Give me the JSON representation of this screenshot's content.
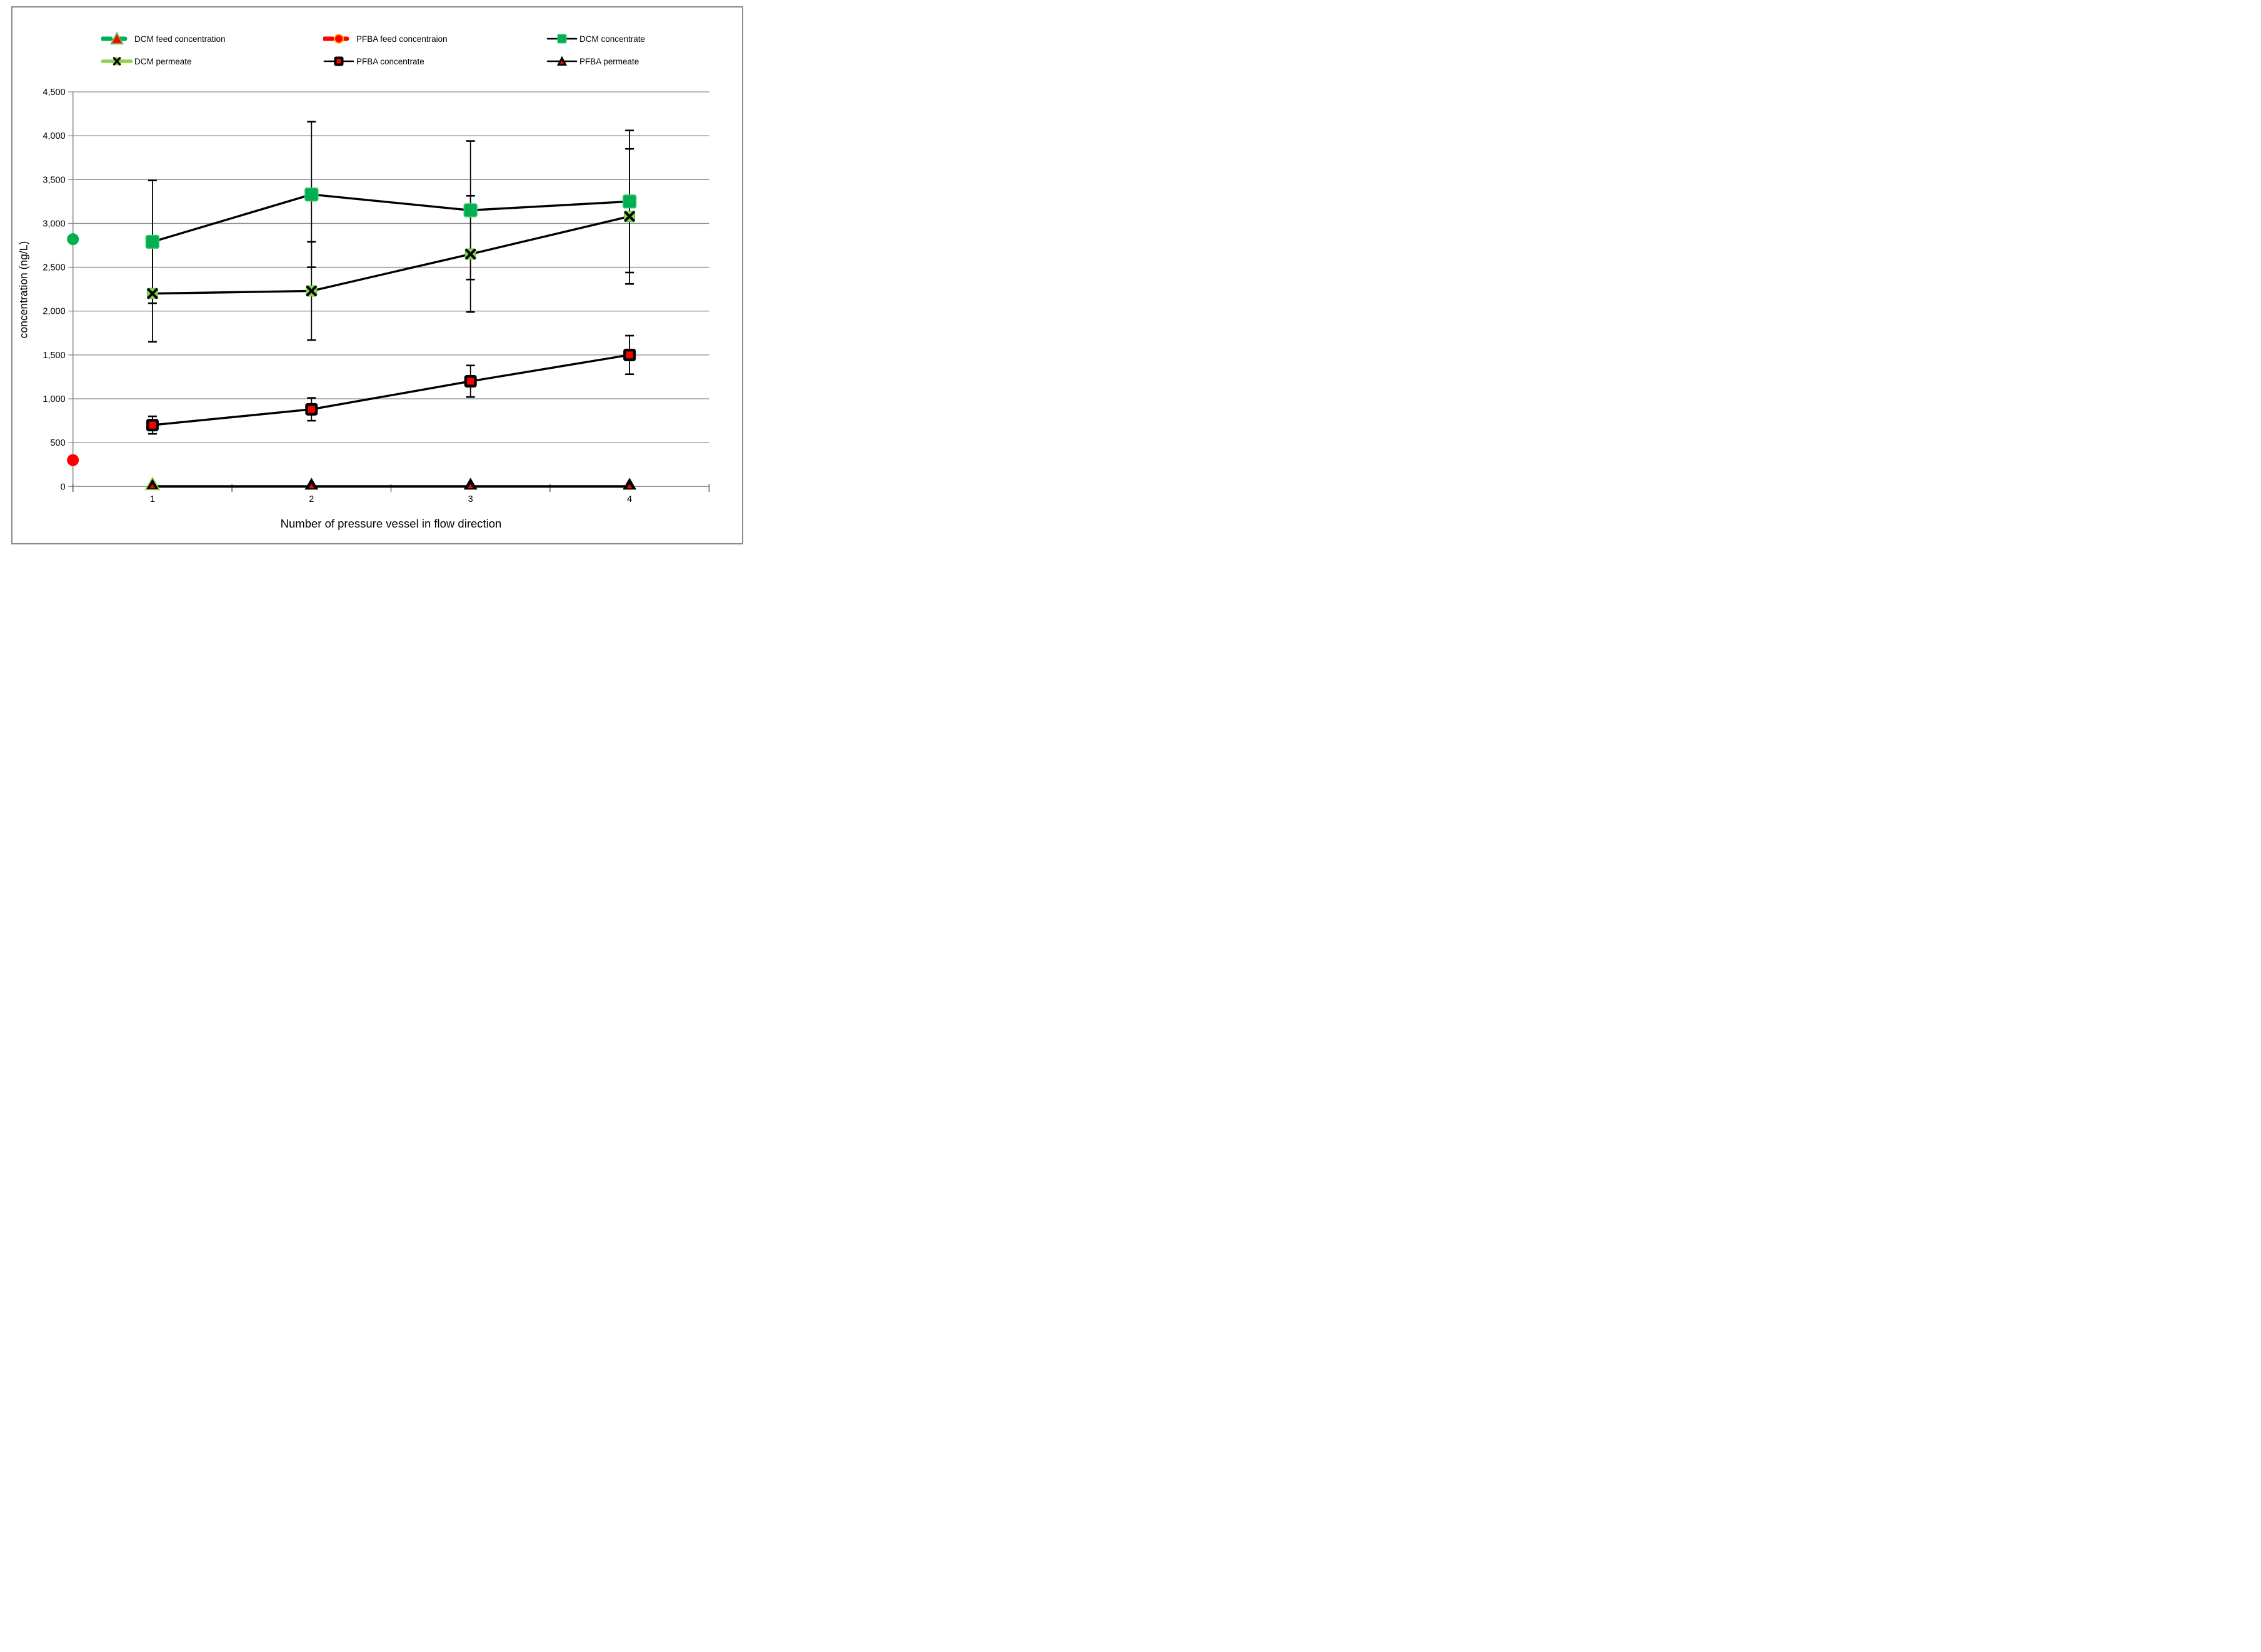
{
  "figure": {
    "y_axis": {
      "title": "concentration (ng/L)",
      "tick_labels": [
        "4,500",
        "4,000",
        "3,500",
        "3,000",
        "2,500",
        "2,000",
        "1,500",
        "1,000",
        "500",
        "0"
      ],
      "min": 0,
      "max": 4500,
      "step": 500
    },
    "x_axis": {
      "title": "Number of pressure vessel in flow direction",
      "categories": [
        "1",
        "2",
        "3",
        "4"
      ]
    }
  },
  "legend": {
    "items": [
      {
        "label": "DCM feed concentration",
        "marker": "dcm-feed"
      },
      {
        "label": "PFBA feed concentraion",
        "marker": "pfba-feed"
      },
      {
        "label": "DCM concentrate",
        "marker": "dcm-concentrate"
      },
      {
        "label": "DCM permeate",
        "marker": "dcm-permeate"
      },
      {
        "label": "PFBA concentrate",
        "marker": "pfba-concentrate"
      },
      {
        "label": "PFBA permeate",
        "marker": "pfba-permeate"
      }
    ]
  },
  "colors": {
    "green": "#00B050",
    "green_edge": "#45cf7a",
    "light_green": "#92D050",
    "red": "#FF0000",
    "orange_ring": "#FFC000",
    "black": "#000000",
    "grid": "#8c8c8c"
  },
  "chart_data": {
    "type": "line",
    "title": "",
    "xlabel": "Number of pressure vessel in flow direction",
    "ylabel": "concentration (ng/L)",
    "ylim": [
      0,
      4500
    ],
    "grid": true,
    "legend_position": "top",
    "categories": [
      1,
      2,
      3,
      4
    ],
    "feed_points": [
      {
        "name": "DCM feed concentration",
        "x": 0,
        "value": 2820,
        "marker": "circle",
        "color": "#00B050"
      },
      {
        "name": "PFBA feed concentraion",
        "x": 0,
        "value": 300,
        "marker": "circle",
        "color": "#FF0000"
      }
    ],
    "series": [
      {
        "name": "DCM concentrate",
        "marker": "dcm-concentrate",
        "values": [
          2790,
          3330,
          3150,
          3250
        ],
        "err_low": [
          2090,
          2500,
          2360,
          2440
        ],
        "err_high": [
          3490,
          4160,
          3940,
          4060
        ]
      },
      {
        "name": "DCM permeate",
        "marker": "dcm-permeate",
        "values": [
          2200,
          2230,
          2650,
          3080
        ],
        "err_low": [
          1650,
          1670,
          1990,
          2310
        ],
        "err_high": [
          2750,
          2790,
          3315,
          3850
        ]
      },
      {
        "name": "PFBA concentrate",
        "marker": "pfba-concentrate",
        "values": [
          700,
          880,
          1200,
          1500
        ],
        "err_low": [
          600,
          750,
          1020,
          1280
        ],
        "err_high": [
          800,
          1010,
          1380,
          1720
        ]
      },
      {
        "name": "PFBA permeate",
        "marker": "pfba-permeate",
        "values": [
          0,
          0,
          0,
          0
        ],
        "err_low": [
          0,
          0,
          0,
          0
        ],
        "err_high": [
          0,
          0,
          0,
          0
        ]
      }
    ]
  }
}
